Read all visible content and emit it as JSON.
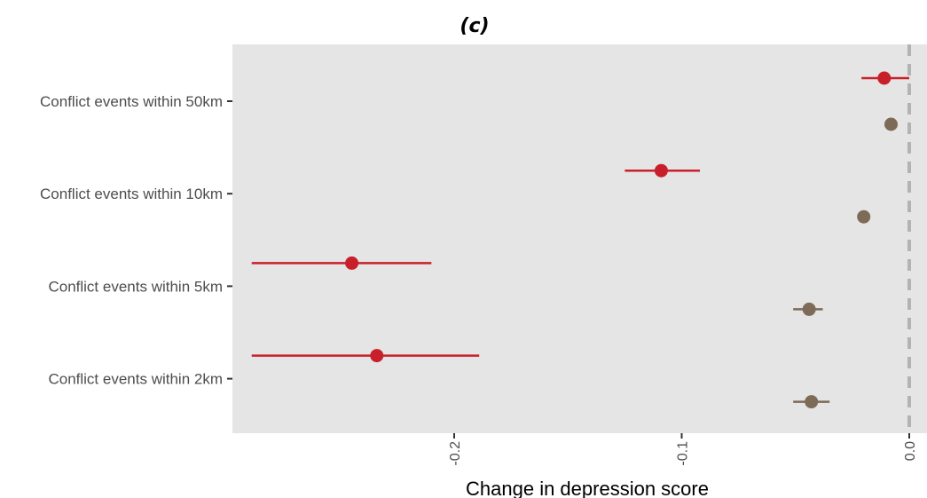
{
  "chart_data": {
    "type": "scatter",
    "subtype": "forest-plot",
    "title": "(c)",
    "xlabel": "Change in depression score",
    "ylabel": "",
    "x_ticks": [
      -0.2,
      -0.1,
      0.0
    ],
    "x_tick_labels": [
      "-0.2",
      "-0.1",
      "0.0"
    ],
    "xlim": [
      -0.29,
      0.008
    ],
    "reference_line": {
      "x": 0.0,
      "style": "dashed",
      "color": "#b3b3b3"
    },
    "panel_background": "#e5e5e5",
    "grid": false,
    "categories": [
      "Conflict events within 50km",
      "Conflict events within 10km",
      "Conflict events within 5km",
      "Conflict events within 2km"
    ],
    "series": [
      {
        "color": "#c8202a",
        "points": [
          {
            "category": "Conflict events within 50km",
            "estimate": -0.011,
            "low": -0.021,
            "high": 0.0
          },
          {
            "category": "Conflict events within 10km",
            "estimate": -0.109,
            "low": -0.125,
            "high": -0.092
          },
          {
            "category": "Conflict events within 5km",
            "estimate": -0.245,
            "low": -0.289,
            "high": -0.21
          },
          {
            "category": "Conflict events within 2km",
            "estimate": -0.234,
            "low": -0.289,
            "high": -0.189
          }
        ]
      },
      {
        "color": "#7d6b57",
        "points": [
          {
            "category": "Conflict events within 50km",
            "estimate": -0.008,
            "low": -0.008,
            "high": -0.008
          },
          {
            "category": "Conflict events within 10km",
            "estimate": -0.02,
            "low": -0.02,
            "high": -0.02
          },
          {
            "category": "Conflict events within 5km",
            "estimate": -0.044,
            "low": -0.051,
            "high": -0.038
          },
          {
            "category": "Conflict events within 2km",
            "estimate": -0.043,
            "low": -0.051,
            "high": -0.035
          }
        ]
      }
    ]
  }
}
